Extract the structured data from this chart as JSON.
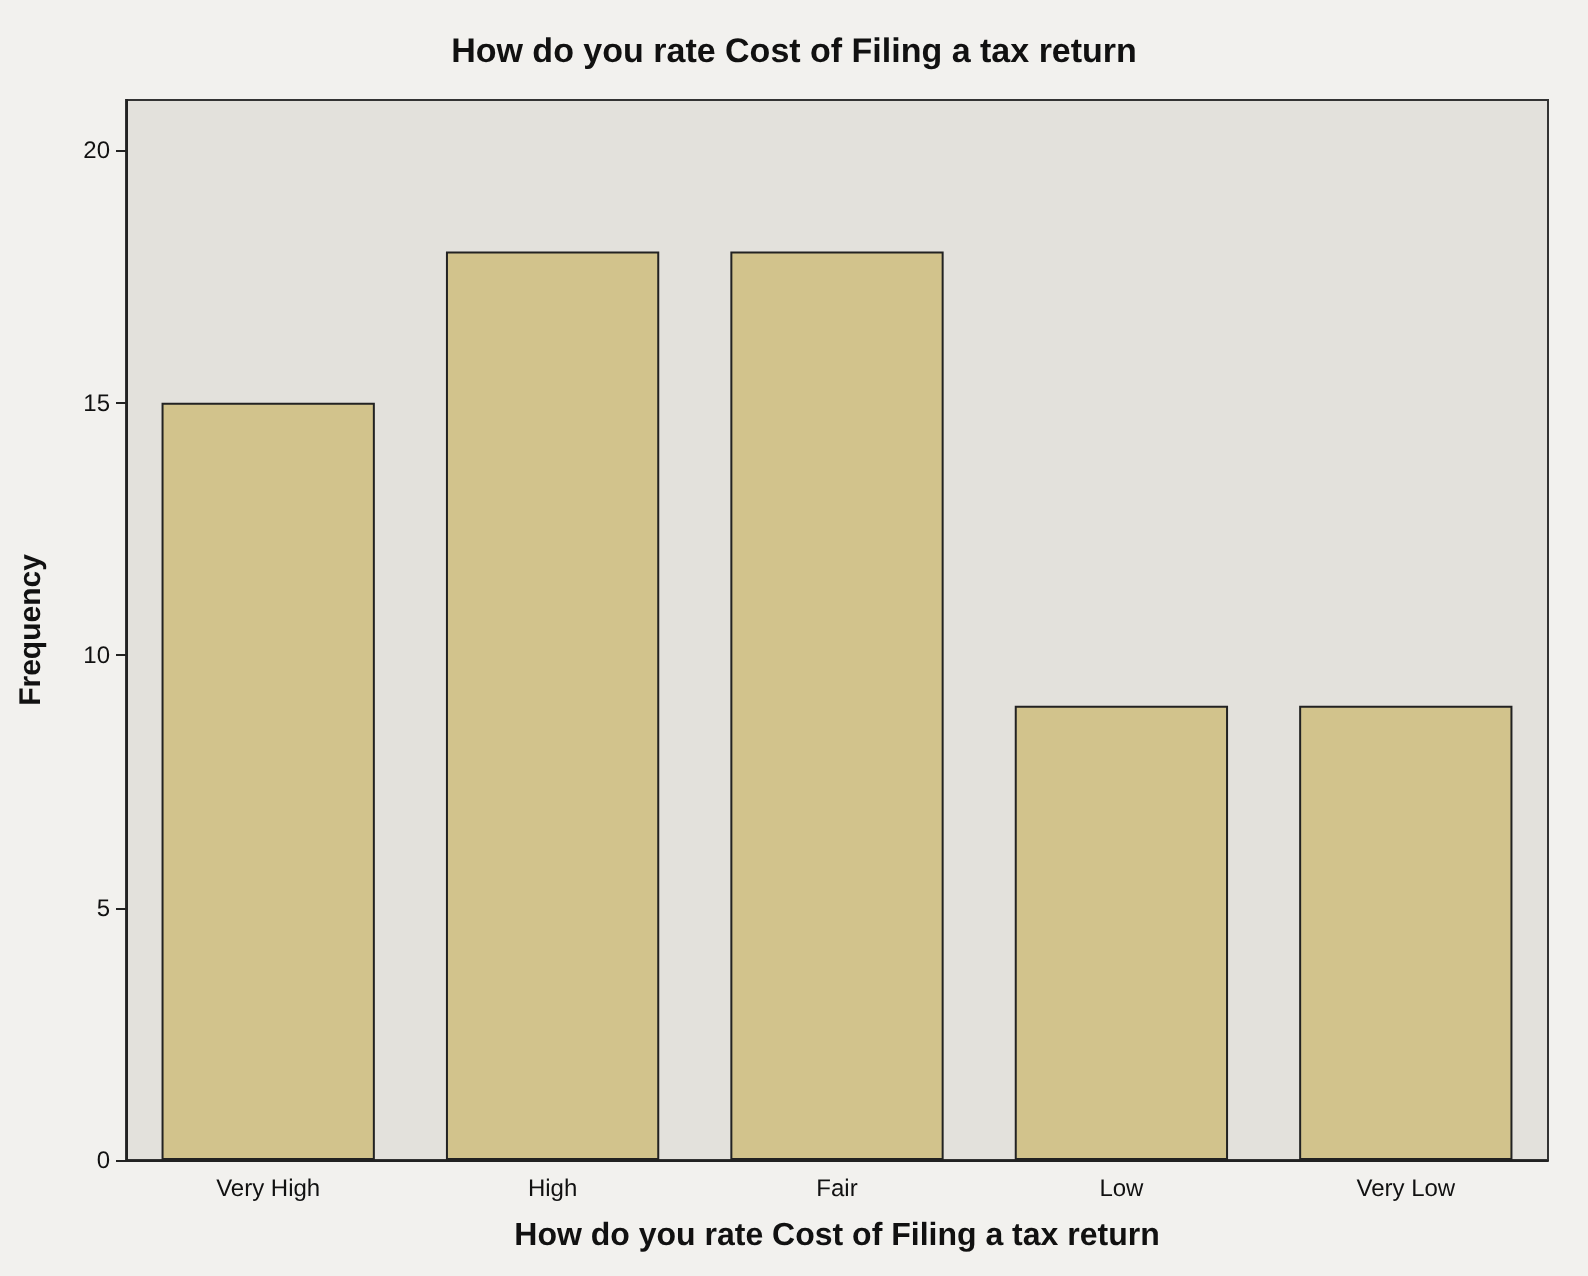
{
  "chart_data": {
    "type": "bar",
    "title": "How do you rate Cost of Filing a tax return",
    "xlabel": "How do you rate Cost of Filing a tax return",
    "ylabel": "Frequency",
    "categories": [
      "Very High",
      "High",
      "Fair",
      "Low",
      "Very Low"
    ],
    "values": [
      15,
      18,
      18,
      9,
      9
    ],
    "color": "#d2c38c",
    "ylim": [
      0,
      21
    ],
    "yticks": [
      0,
      5,
      10,
      15,
      20
    ],
    "grid": false
  }
}
